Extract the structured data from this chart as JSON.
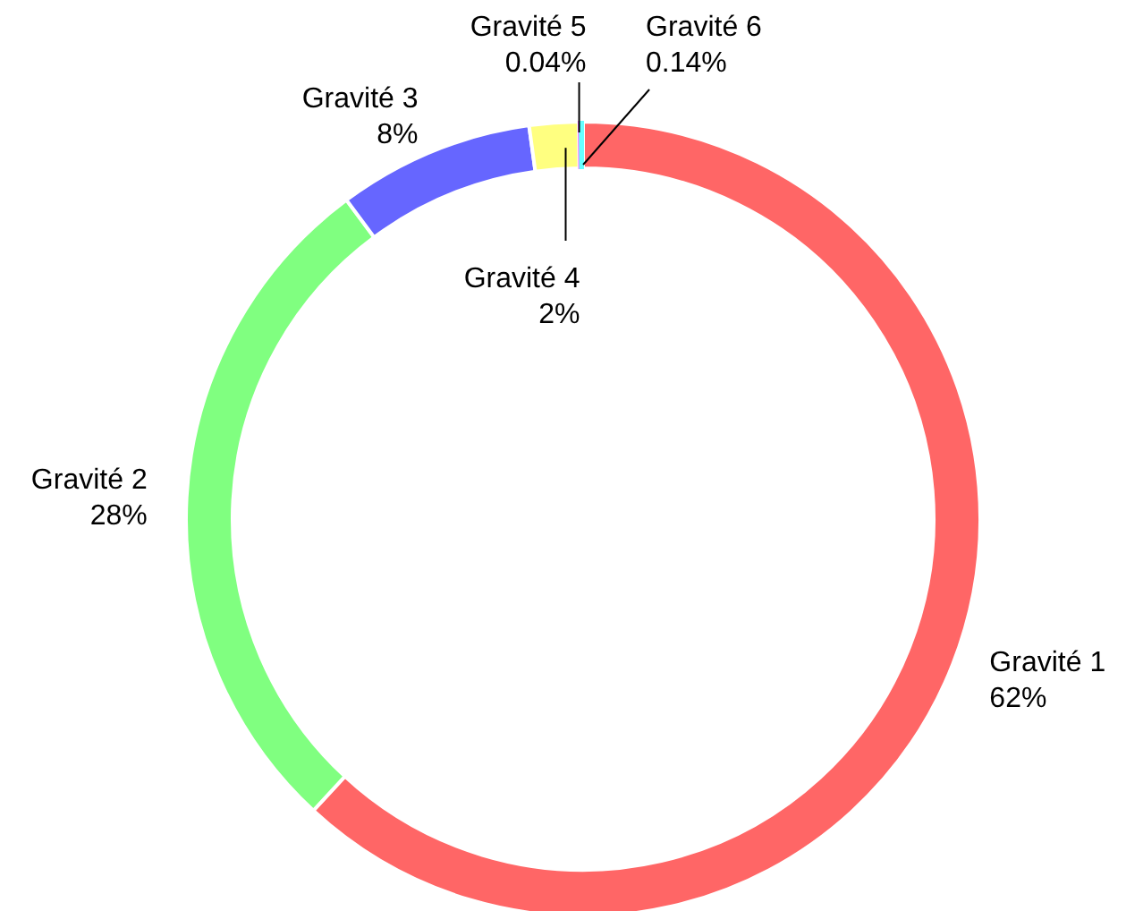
{
  "chart_data": {
    "type": "donut",
    "categories": [
      "Gravité 1",
      "Gravité 2",
      "Gravité 3",
      "Gravité 4",
      "Gravité 5",
      "Gravité 6"
    ],
    "values": [
      62,
      28,
      8,
      2,
      0.04,
      0.14
    ],
    "value_labels": [
      "62%",
      "28%",
      "8%",
      "2%",
      "0.04%",
      "0.14%"
    ],
    "colors": [
      "#ff6666",
      "#80ff80",
      "#6666ff",
      "#ffff80",
      "#ff66ff",
      "#66ffff"
    ],
    "legend": false
  }
}
